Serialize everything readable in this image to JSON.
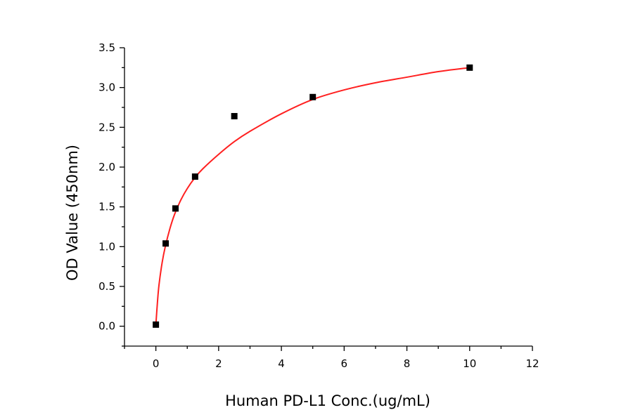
{
  "chart_data": {
    "type": "scatter",
    "title": "",
    "xlabel": "Human PD-L1 Conc.(ug/mL)",
    "ylabel": "OD Value (450nm)",
    "xlim": [
      -1,
      12
    ],
    "ylim": [
      -0.25,
      3.5
    ],
    "x_ticks": [
      0,
      2,
      4,
      6,
      8,
      10,
      12
    ],
    "y_ticks": [
      0.0,
      0.5,
      1.0,
      1.5,
      2.0,
      2.5,
      3.0,
      3.5
    ],
    "x_tick_labels": [
      "0",
      "2",
      "4",
      "6",
      "8",
      "10",
      "12"
    ],
    "y_tick_labels": [
      "0.0",
      "0.5",
      "1.0",
      "1.5",
      "2.0",
      "2.5",
      "3.0",
      "3.5"
    ],
    "grid": false,
    "legend": false,
    "series": [
      {
        "kind": "points",
        "marker": "square",
        "color": "#000000",
        "x": [
          0,
          0.3125,
          0.625,
          1.25,
          2.5,
          5,
          10
        ],
        "y": [
          0.02,
          1.04,
          1.48,
          1.88,
          2.64,
          2.88,
          3.25
        ]
      },
      {
        "kind": "fit-curve",
        "color": "#ff2020",
        "x": [
          0,
          0.05,
          0.1,
          0.2,
          0.3,
          0.45,
          0.6,
          0.8,
          1.0,
          1.25,
          1.5,
          2.0,
          2.5,
          3.0,
          4.0,
          5.0,
          6.0,
          7.0,
          8.0,
          9.0,
          10.0
        ],
        "y": [
          0.02,
          0.3,
          0.52,
          0.8,
          1.0,
          1.23,
          1.41,
          1.59,
          1.73,
          1.87,
          1.98,
          2.16,
          2.32,
          2.45,
          2.67,
          2.85,
          2.97,
          3.06,
          3.13,
          3.2,
          3.25
        ]
      }
    ]
  }
}
